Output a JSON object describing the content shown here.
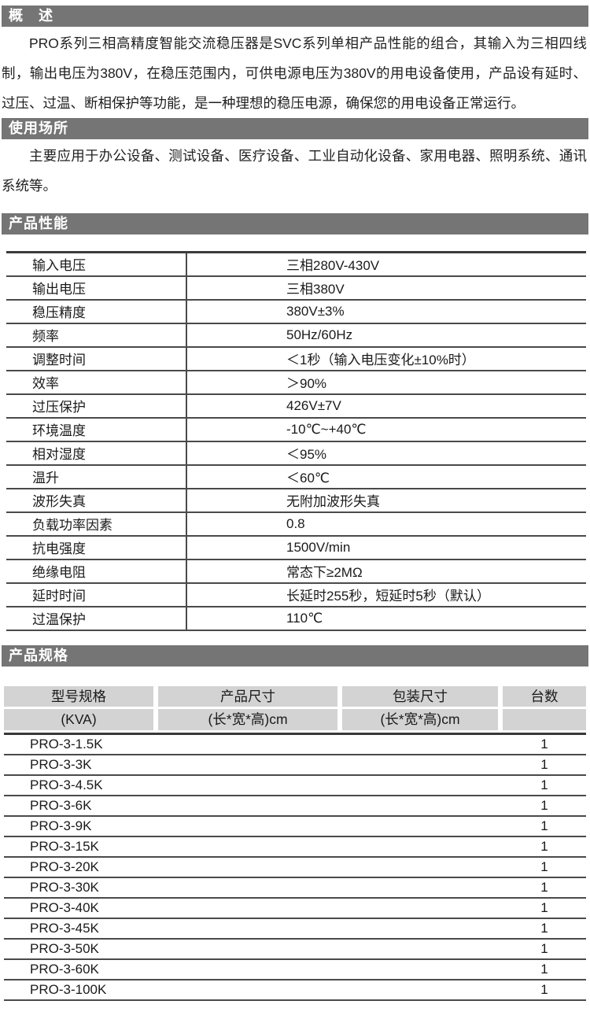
{
  "colors": {
    "section_bar_bg": "#757575",
    "section_bar_text": "#ffffff",
    "table_header_bg": "#d3d3d3",
    "rule_color": "#4a4a4a",
    "text_color": "#1a1a1a",
    "page_bg": "#ffffff"
  },
  "sections": {
    "overview": {
      "title": "概　述",
      "body": "PRO系列三相高精度智能交流稳压器是SVC系列单相产品性能的组合，其输入为三相四线制，输出电压为380V，在稳压范围内，可供电源电压为380V的用电设备使用，产品设有延时、过压、过温、断相保护等功能，是一种理想的稳压电源，确保您的用电设备正常运行。"
    },
    "usage": {
      "title": "使用场所",
      "body": "主要应用于办公设备、测试设备、医疗设备、工业自动化设备、家用电器、照明系统、通讯系统等。"
    },
    "performance": {
      "title": "产品性能",
      "rows": [
        {
          "label": "输入电压",
          "value": "三相280V-430V"
        },
        {
          "label": "输出电压",
          "value": "三相380V"
        },
        {
          "label": "稳压精度",
          "value": "380V±3%"
        },
        {
          "label": "频率",
          "value": "50Hz/60Hz"
        },
        {
          "label": "调整时间",
          "value": "＜1秒（输入电压变化±10%时）"
        },
        {
          "label": "效率",
          "value": "＞90%"
        },
        {
          "label": "过压保护",
          "value": "426V±7V"
        },
        {
          "label": "环境温度",
          "value": "-10℃~+40℃"
        },
        {
          "label": "相对湿度",
          "value": "＜95%"
        },
        {
          "label": "温升",
          "value": "＜60℃"
        },
        {
          "label": "波形失真",
          "value": "无附加波形失真"
        },
        {
          "label": "负载功率因素",
          "value": "0.8"
        },
        {
          "label": "抗电强度",
          "value": "1500V/min"
        },
        {
          "label": "绝缘电阻",
          "value": "常态下≥2MΩ"
        },
        {
          "label": "延时时间",
          "value": "长延时255秒，短延时5秒（默认）"
        },
        {
          "label": "过温保护",
          "value": "110℃"
        }
      ]
    },
    "specs": {
      "title": "产品规格",
      "columns": [
        {
          "title": "型号规格",
          "subtitle": "(KVA)"
        },
        {
          "title": "产品尺寸",
          "subtitle": "(长*宽*高)cm"
        },
        {
          "title": "包装尺寸",
          "subtitle": "(长*宽*高)cm"
        },
        {
          "title": "台数",
          "subtitle": ""
        }
      ],
      "rows": [
        {
          "model": "PRO-3-1.5K",
          "product_size": "",
          "package_size": "",
          "qty": "1"
        },
        {
          "model": "PRO-3-3K",
          "product_size": "",
          "package_size": "",
          "qty": "1"
        },
        {
          "model": "PRO-3-4.5K",
          "product_size": "",
          "package_size": "",
          "qty": "1"
        },
        {
          "model": "PRO-3-6K",
          "product_size": "",
          "package_size": "",
          "qty": "1"
        },
        {
          "model": "PRO-3-9K",
          "product_size": "",
          "package_size": "",
          "qty": "1"
        },
        {
          "model": "PRO-3-15K",
          "product_size": "",
          "package_size": "",
          "qty": "1"
        },
        {
          "model": "PRO-3-20K",
          "product_size": "",
          "package_size": "",
          "qty": "1"
        },
        {
          "model": "PRO-3-30K",
          "product_size": "",
          "package_size": "",
          "qty": "1"
        },
        {
          "model": "PRO-3-40K",
          "product_size": "",
          "package_size": "",
          "qty": "1"
        },
        {
          "model": "PRO-3-45K",
          "product_size": "",
          "package_size": "",
          "qty": "1"
        },
        {
          "model": "PRO-3-50K",
          "product_size": "",
          "package_size": "",
          "qty": "1"
        },
        {
          "model": "PRO-3-60K",
          "product_size": "",
          "package_size": "",
          "qty": "1"
        },
        {
          "model": "PRO-3-100K",
          "product_size": "",
          "package_size": "",
          "qty": "1"
        }
      ]
    }
  }
}
